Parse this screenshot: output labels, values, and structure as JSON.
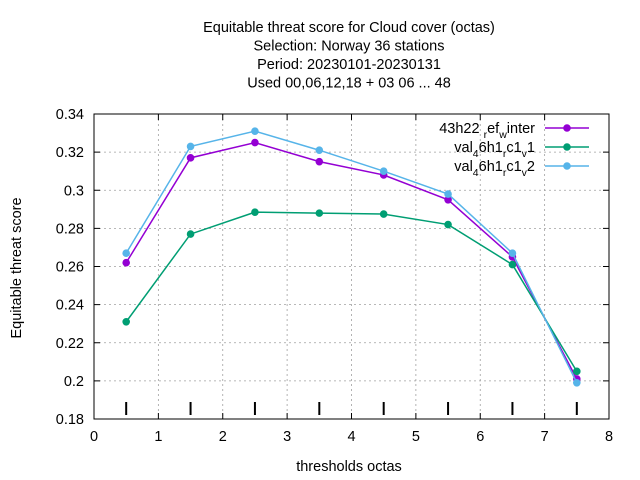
{
  "chart_data": {
    "type": "line",
    "title_lines": [
      "Equitable threat score  for Cloud cover (octas)",
      "Selection: Norway     36 stations",
      "Period: 20230101-20230131",
      "Used  00,06,12,18  + 03 06 ... 48"
    ],
    "xlabel": "thresholds octas",
    "ylabel": "Equitable threat score",
    "xlim": [
      0,
      8
    ],
    "ylim": [
      0.18,
      0.34
    ],
    "xticks": [
      "0",
      "1",
      "2",
      "3",
      "4",
      "5",
      "6",
      "7",
      "8"
    ],
    "yticks": [
      "0.18",
      "0.2",
      "0.22",
      "0.24",
      "0.26",
      "0.28",
      "0.3",
      "0.32",
      "0.34"
    ],
    "grid": true,
    "legend_position": "top-right",
    "x": [
      0.5,
      1.5,
      2.5,
      3.5,
      4.5,
      5.5,
      6.5,
      7.5
    ],
    "series": [
      {
        "name": "43h22_ref_winter",
        "legend_parts": [
          [
            "43h22 ",
            ""
          ],
          [
            "r",
            "sub"
          ],
          [
            "ef",
            ""
          ],
          [
            "w",
            "sub"
          ],
          [
            "inter",
            ""
          ]
        ],
        "color": "#9400d3",
        "values": [
          0.262,
          0.317,
          0.325,
          0.315,
          0.308,
          0.295,
          0.265,
          0.201
        ]
      },
      {
        "name": "val_46h1_rc1_v1",
        "legend_parts": [
          [
            "val",
            ""
          ],
          [
            "4",
            "sub"
          ],
          [
            "6h1",
            ""
          ],
          [
            "r",
            "sub"
          ],
          [
            "c1",
            ""
          ],
          [
            "v",
            "sub"
          ],
          [
            "1",
            ""
          ]
        ],
        "color": "#009e73",
        "values": [
          0.231,
          0.277,
          0.2885,
          0.288,
          0.2875,
          0.282,
          0.261,
          0.205
        ]
      },
      {
        "name": "val_46h1_rc1_v2",
        "legend_parts": [
          [
            "val",
            ""
          ],
          [
            "4",
            "sub"
          ],
          [
            "6h1",
            ""
          ],
          [
            "r",
            "sub"
          ],
          [
            "c1",
            ""
          ],
          [
            "v",
            "sub"
          ],
          [
            "2",
            ""
          ]
        ],
        "color": "#56b4e9",
        "values": [
          0.267,
          0.323,
          0.331,
          0.321,
          0.31,
          0.298,
          0.267,
          0.199
        ]
      }
    ],
    "tick_marks_x": [
      0.5,
      1.5,
      2.5,
      3.5,
      4.5,
      5.5,
      6.5,
      7.5
    ]
  }
}
